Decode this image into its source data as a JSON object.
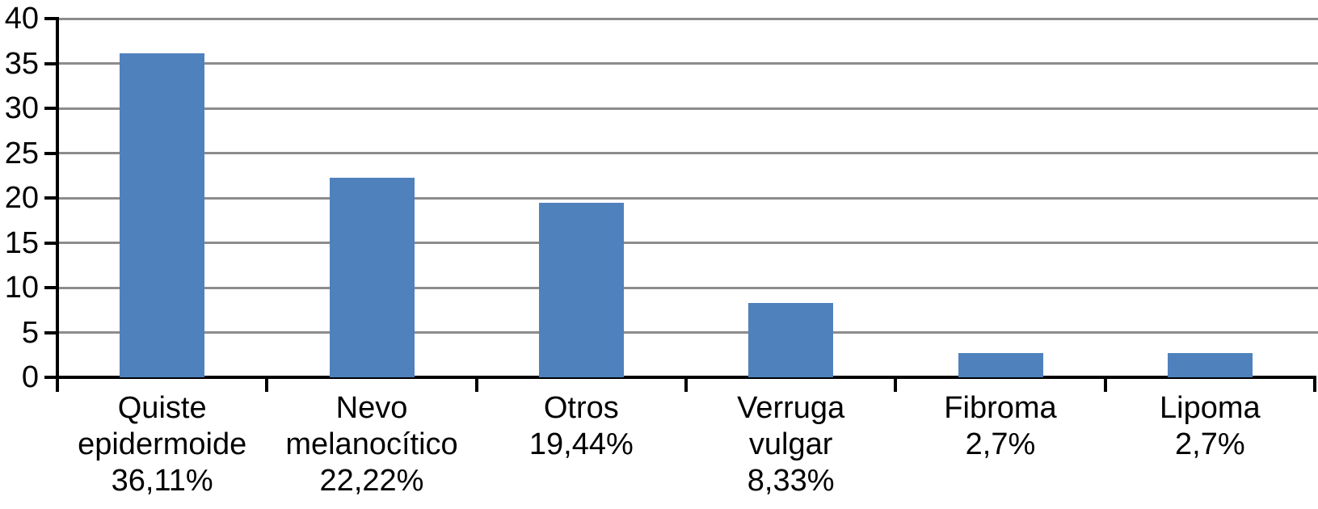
{
  "chart_data": {
    "type": "bar",
    "categories": [
      "Quiste epidermoide",
      "Nevo melanocítico",
      "Otros",
      "Verruga vulgar",
      "Fibroma",
      "Lipoma"
    ],
    "values": [
      36.11,
      22.22,
      19.44,
      8.33,
      2.7,
      2.7
    ],
    "data_labels": [
      "36,11%",
      "22,22%",
      "19,44%",
      "8,33%",
      "2,7%",
      "2,7%"
    ],
    "label_lines": [
      [
        "Quiste",
        "epidermoide",
        "36,11%"
      ],
      [
        "Nevo",
        "melanocítico",
        "22,22%"
      ],
      [
        "Otros",
        "19,44%"
      ],
      [
        "Verruga",
        "vulgar",
        "8,33%"
      ],
      [
        "Fibroma",
        "2,7%"
      ],
      [
        "Lipoma",
        "2,7%"
      ]
    ],
    "y_ticks": [
      0,
      5,
      10,
      15,
      20,
      25,
      30,
      35,
      40
    ],
    "ylim": [
      0,
      40
    ],
    "title": "",
    "xlabel": "",
    "ylabel": "",
    "grid": true,
    "legend": false,
    "colors": {
      "bar": "#4F81BD",
      "gridline": "#8C8C8C",
      "axis": "#000000",
      "text": "#000000",
      "background": "#FFFFFF"
    }
  }
}
